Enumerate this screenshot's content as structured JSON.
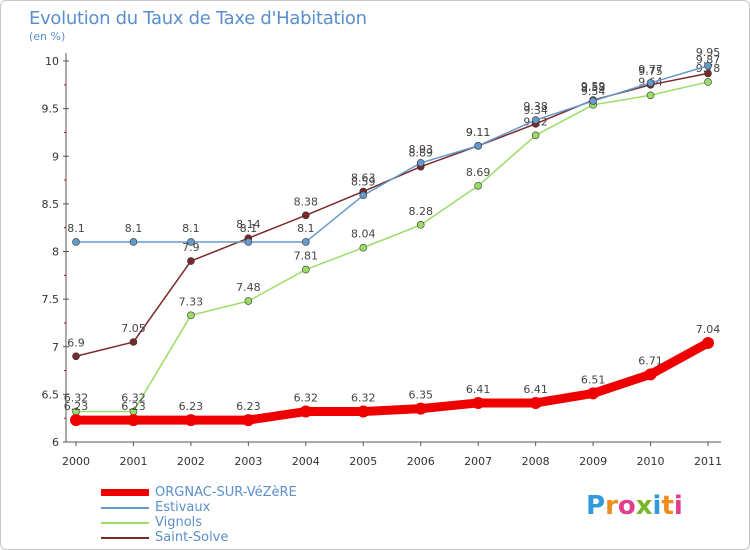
{
  "title": "Evolution du Taux de Taxe d'Habitation",
  "subtitle": "(en %)",
  "logo": "Proxiti",
  "chart_data": {
    "type": "line",
    "title": "Evolution du Taux de Taxe d'Habitation",
    "ylabel": "(en %)",
    "xlabel": "",
    "categories": [
      "2000",
      "2001",
      "2002",
      "2003",
      "2004",
      "2005",
      "2006",
      "2007",
      "2008",
      "2009",
      "2010",
      "2011"
    ],
    "ylim": [
      6,
      10
    ],
    "yticks": [
      "6",
      "6.5",
      "7",
      "7.5",
      "8",
      "8.5",
      "9",
      "9.5",
      "10"
    ],
    "grid": false,
    "legend": "bottom-left",
    "series": [
      {
        "name": "ORGNAC-SUR-VéZèRE",
        "color": "#ee0000",
        "values": [
          6.23,
          6.23,
          6.23,
          6.23,
          6.32,
          6.32,
          6.35,
          6.41,
          6.41,
          6.51,
          6.71,
          7.04
        ],
        "labels": [
          "6.23",
          "6.23",
          "6.23",
          "6.23",
          "6.32",
          "6.32",
          "6.35",
          "6.41",
          "6.41",
          "6.51",
          "6.71",
          "7.04"
        ]
      },
      {
        "name": "Estivaux",
        "color": "#6699cc",
        "values": [
          8.1,
          8.1,
          8.1,
          8.1,
          8.1,
          8.59,
          8.93,
          9.11,
          9.38,
          9.58,
          9.77,
          9.95
        ],
        "labels": [
          "8.1",
          "8.1",
          "8.1",
          "8.1",
          "8.1",
          "8.59",
          "8.93",
          "9.11",
          "9.38",
          "9.58",
          "9.77",
          "9.95"
        ]
      },
      {
        "name": "Vignols",
        "color": "#99dd66",
        "values": [
          6.32,
          6.32,
          7.33,
          7.48,
          7.81,
          8.04,
          8.28,
          8.69,
          9.22,
          9.54,
          9.64,
          9.78
        ],
        "labels": [
          "6.32",
          "6.32",
          "7.33",
          "7.48",
          "7.81",
          "8.04",
          "8.28",
          "8.69",
          "9.22",
          "9.54",
          "9.64",
          "9.78"
        ]
      },
      {
        "name": "Saint-Solve",
        "color": "#7a2a2a",
        "values": [
          6.9,
          7.05,
          7.9,
          8.14,
          8.38,
          8.63,
          8.89,
          9.11,
          9.34,
          9.59,
          9.75,
          9.87
        ],
        "labels": [
          "6.9",
          "7.05",
          "7.9",
          "8.14",
          "8.38",
          "8.63",
          "8.89",
          "9.11",
          "9.34",
          "9.59",
          "9.75",
          "9.87"
        ]
      }
    ]
  }
}
